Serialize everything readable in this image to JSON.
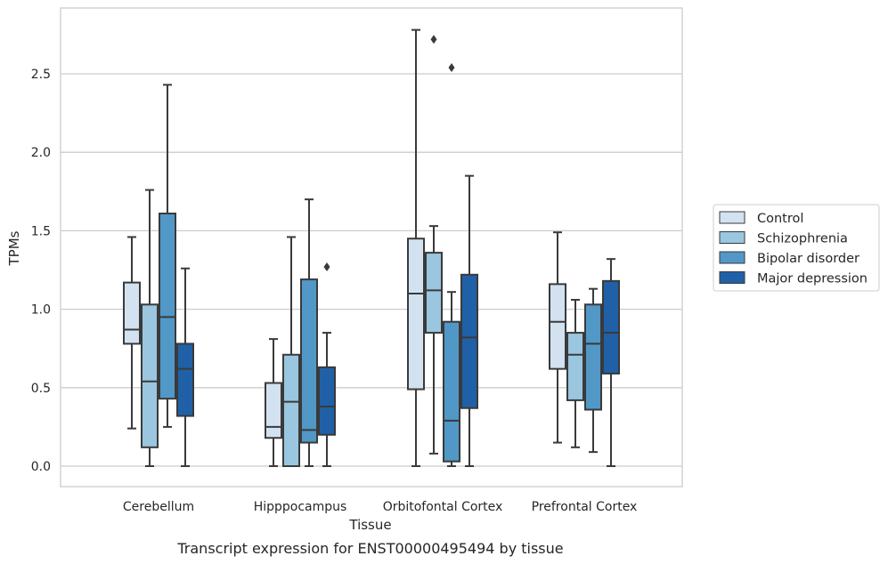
{
  "chart_data": {
    "type": "boxplot",
    "caption": "Transcript expression for ENST00000495494 by tissue",
    "xlabel": "Tissue",
    "ylabel": "TPMs",
    "ylim": [
      -0.13,
      2.93
    ],
    "yticks": [
      0.0,
      0.5,
      1.0,
      1.5,
      2.0,
      2.5
    ],
    "ytick_labels": [
      "0.0",
      "0.5",
      "1.0",
      "1.5",
      "2.0",
      "2.5"
    ],
    "grid": "horizontal",
    "legend_position": "right",
    "categories": [
      "Cerebellum",
      "Hipppocampus",
      "Orbitofontal Cortex",
      "Prefrontal Cortex"
    ],
    "series": [
      {
        "name": "Control",
        "color": "#d3e2f1",
        "boxes": [
          {
            "whislo": 0.24,
            "q1": 0.78,
            "med": 0.87,
            "q3": 1.17,
            "whishi": 1.46,
            "fliers": []
          },
          {
            "whislo": 0.0,
            "q1": 0.18,
            "med": 0.25,
            "q3": 0.53,
            "whishi": 0.81,
            "fliers": []
          },
          {
            "whislo": 0.0,
            "q1": 0.49,
            "med": 1.1,
            "q3": 1.45,
            "whishi": 2.78,
            "fliers": []
          },
          {
            "whislo": 0.15,
            "q1": 0.62,
            "med": 0.92,
            "q3": 1.16,
            "whishi": 1.49,
            "fliers": []
          }
        ]
      },
      {
        "name": "Schizophrenia",
        "color": "#9ac6df",
        "boxes": [
          {
            "whislo": 0.0,
            "q1": 0.12,
            "med": 0.54,
            "q3": 1.03,
            "whishi": 1.76,
            "fliers": []
          },
          {
            "whislo": 0.0,
            "q1": 0.0,
            "med": 0.41,
            "q3": 0.71,
            "whishi": 1.46,
            "fliers": []
          },
          {
            "whislo": 0.08,
            "q1": 0.85,
            "med": 1.12,
            "q3": 1.36,
            "whishi": 1.53,
            "fliers": [
              2.72
            ]
          },
          {
            "whislo": 0.12,
            "q1": 0.42,
            "med": 0.71,
            "q3": 0.85,
            "whishi": 1.06,
            "fliers": []
          }
        ]
      },
      {
        "name": "Bipolar disorder",
        "color": "#5198c7",
        "boxes": [
          {
            "whislo": 0.25,
            "q1": 0.43,
            "med": 0.95,
            "q3": 1.61,
            "whishi": 2.43,
            "fliers": []
          },
          {
            "whislo": 0.0,
            "q1": 0.15,
            "med": 0.23,
            "q3": 1.19,
            "whishi": 1.7,
            "fliers": []
          },
          {
            "whislo": 0.0,
            "q1": 0.03,
            "med": 0.29,
            "q3": 0.92,
            "whishi": 1.11,
            "fliers": [
              2.54
            ]
          },
          {
            "whislo": 0.09,
            "q1": 0.36,
            "med": 0.78,
            "q3": 1.03,
            "whishi": 1.13,
            "fliers": []
          }
        ]
      },
      {
        "name": "Major depression",
        "color": "#2060a7",
        "boxes": [
          {
            "whislo": 0.0,
            "q1": 0.32,
            "med": 0.62,
            "q3": 0.78,
            "whishi": 1.26,
            "fliers": []
          },
          {
            "whislo": 0.0,
            "q1": 0.2,
            "med": 0.38,
            "q3": 0.63,
            "whishi": 0.85,
            "fliers": [
              1.27
            ]
          },
          {
            "whislo": 0.0,
            "q1": 0.37,
            "med": 0.82,
            "q3": 1.22,
            "whishi": 1.85,
            "fliers": []
          },
          {
            "whislo": 0.0,
            "q1": 0.59,
            "med": 0.85,
            "q3": 1.18,
            "whishi": 1.32,
            "fliers": []
          }
        ]
      }
    ],
    "colors": {
      "box_edge": "#3a3a3a",
      "grid": "#cccccc",
      "frame": "#cccccc",
      "text": "#262626"
    }
  }
}
